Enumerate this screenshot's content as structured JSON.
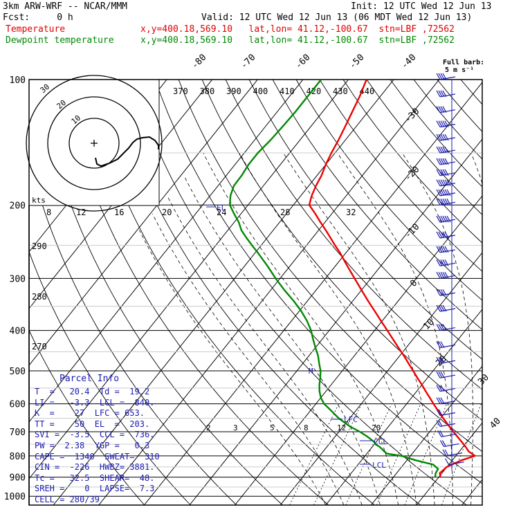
{
  "header": {
    "model": "3km ARW-WRF -- NCAR/MMM",
    "init": "Init: 12 UTC Wed 12 Jun 13",
    "fcst": "Fcst:     0 h",
    "valid": "Valid: 12 UTC Wed 12 Jun 13 (06 MDT Wed 12 Jun 13)",
    "temp_label": "Temperature",
    "dew_label": "Dewpoint temperature",
    "temp_loc": "x,y=400.18,569.10   lat,lon= 41.12,-100.67  stn=LBF ,72562",
    "dew_loc": "x,y=400.18,569.10   lat,lon= 41.12,-100.67  stn=LBF ,72562"
  },
  "barb_legend": {
    "line1": "Full barb:",
    "line2": "5 m s⁻¹"
  },
  "parcel_info": {
    "title": "Parcel Info",
    "rows": [
      "T  =   20.4  Td =  19.2",
      "LI =   -3.3  LCL =  840.",
      "K  =    27  LFC = 653.",
      "TT =    50  EL  =  203.",
      "SVI =  -3.5  CCL =  736.",
      "PW =  2.38  YGP =   0.3",
      "CAPE =  1340  SWEAT=  310",
      "CIN =  -226  HWBZ= 3881.",
      "Tc =   32.5  SHEAR=  48.",
      "SREH =    0  LAPSE=  7.3",
      "CELL = 280/39"
    ]
  },
  "hodograph": {
    "units_label": "kts",
    "ring_labels": [
      "10",
      "20",
      "30"
    ],
    "speed_labels": [
      "8",
      "12",
      "16",
      "20",
      "24",
      "28",
      "32"
    ]
  },
  "annotations": {
    "el": "EL",
    "lfc": "LFC",
    "ccl": "CCL",
    "lcl": "LCL",
    "m": "M"
  },
  "chart_data": {
    "type": "line",
    "title": "",
    "xlabel": "",
    "ylabel": "",
    "y_scale": "log",
    "y_reversed": true,
    "pressure_ticks": [
      100,
      200,
      300,
      400,
      500,
      600,
      700,
      800,
      900,
      1000
    ],
    "pressure_range": [
      100,
      1000
    ],
    "isotherms": [
      -80,
      -70,
      -60,
      -50,
      -40,
      -30,
      -20,
      -10,
      0,
      10,
      20,
      30,
      40
    ],
    "theta_labels": [
      370,
      380,
      390,
      400,
      410,
      420,
      430,
      440
    ],
    "theta_left_labels": [
      290,
      280,
      270
    ],
    "mixing_ratio_labels": [
      2,
      3,
      5,
      8,
      12,
      20
    ],
    "series": [
      {
        "name": "Temperature",
        "color": "#ee0000",
        "pressure": [
          900,
          880,
          850,
          820,
          800,
          780,
          760,
          740,
          720,
          700,
          680,
          650,
          620,
          600,
          580,
          560,
          540,
          520,
          500,
          480,
          460,
          440,
          420,
          400,
          380,
          360,
          340,
          320,
          300,
          280,
          260,
          250,
          240,
          230,
          220,
          210,
          200,
          190,
          180,
          170,
          160,
          150,
          140,
          130,
          120,
          110,
          100
        ],
        "temp_c": [
          20.4,
          19.5,
          20.0,
          22.0,
          24.2,
          22.0,
          20.5,
          18.8,
          17.0,
          15.2,
          13.4,
          10.6,
          7.8,
          5.9,
          4.0,
          2.0,
          0.0,
          -2.2,
          -4.4,
          -6.7,
          -9.1,
          -11.7,
          -14.4,
          -17.2,
          -20.2,
          -23.3,
          -26.6,
          -30.0,
          -33.6,
          -37.4,
          -41.4,
          -43.7,
          -46.0,
          -48.4,
          -51.0,
          -53.6,
          -56.5,
          -57.6,
          -58.4,
          -59.0,
          -60.0,
          -60.8,
          -61.5,
          -62.4,
          -63.4,
          -64.5,
          -66.0
        ]
      },
      {
        "name": "Dewpoint temperature",
        "color": "#008800",
        "pressure": [
          900,
          880,
          860,
          840,
          820,
          800,
          790,
          780,
          770,
          760,
          750,
          740,
          720,
          700,
          680,
          650,
          620,
          600,
          580,
          560,
          540,
          520,
          500,
          480,
          460,
          440,
          420,
          400,
          380,
          360,
          340,
          320,
          300,
          280,
          260,
          250,
          240,
          230,
          220,
          210,
          200,
          190,
          180,
          170,
          160,
          150,
          140,
          130,
          120,
          110,
          100
        ],
        "temp_c": [
          19.2,
          18.6,
          18.4,
          16.6,
          12.0,
          8.0,
          4.4,
          3.4,
          2.5,
          1.5,
          0.2,
          -0.5,
          -2.8,
          -5.4,
          -8.5,
          -12.4,
          -15.8,
          -18.2,
          -20.0,
          -21.4,
          -22.6,
          -23.6,
          -24.8,
          -26.4,
          -28.0,
          -30.0,
          -32.0,
          -34.0,
          -36.5,
          -39.5,
          -43.0,
          -47.0,
          -51.0,
          -55.0,
          -59.5,
          -62.0,
          -64.5,
          -67.0,
          -69.0,
          -71.5,
          -74.0,
          -75.5,
          -76.5,
          -76.6,
          -77.0,
          -77.0,
          -76.5,
          -76.2,
          -76.0,
          -76.0,
          -76.0
        ]
      }
    ],
    "wind_barbs_knots": [
      {
        "p": 100,
        "spd": 35
      },
      {
        "p": 110,
        "spd": 40
      },
      {
        "p": 120,
        "spd": 40
      },
      {
        "p": 130,
        "spd": 45
      },
      {
        "p": 140,
        "spd": 45
      },
      {
        "p": 150,
        "spd": 50
      },
      {
        "p": 160,
        "spd": 50
      },
      {
        "p": 170,
        "spd": 50
      },
      {
        "p": 180,
        "spd": 55
      },
      {
        "p": 190,
        "spd": 55
      },
      {
        "p": 200,
        "spd": 55
      },
      {
        "p": 220,
        "spd": 55
      },
      {
        "p": 240,
        "spd": 50
      },
      {
        "p": 260,
        "spd": 50
      },
      {
        "p": 280,
        "spd": 45
      },
      {
        "p": 300,
        "spd": 45
      },
      {
        "p": 330,
        "spd": 40
      },
      {
        "p": 360,
        "spd": 40
      },
      {
        "p": 400,
        "spd": 35
      },
      {
        "p": 440,
        "spd": 30
      },
      {
        "p": 480,
        "spd": 30
      },
      {
        "p": 520,
        "spd": 25
      },
      {
        "p": 560,
        "spd": 25
      },
      {
        "p": 600,
        "spd": 25
      },
      {
        "p": 640,
        "spd": 20
      },
      {
        "p": 680,
        "spd": 20
      },
      {
        "p": 720,
        "spd": 20
      },
      {
        "p": 760,
        "spd": 15
      },
      {
        "p": 800,
        "spd": 15
      },
      {
        "p": 840,
        "spd": 10
      }
    ]
  }
}
